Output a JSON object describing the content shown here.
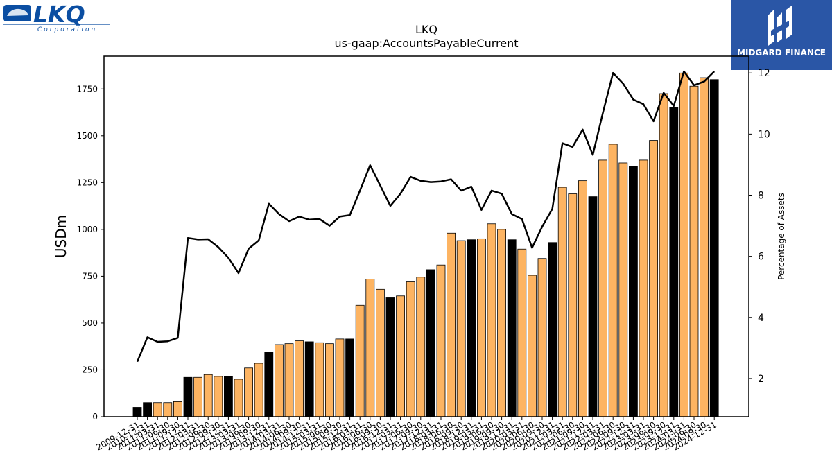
{
  "logos": {
    "left": {
      "name": "LKQ",
      "subtitle": "Corporation"
    },
    "right": {
      "name": "MIDGARD FINANCE"
    }
  },
  "chart_data": {
    "type": "bar",
    "title": "LKQ",
    "subtitle": "us-gaap:AccountsPayableCurrent",
    "ylabel": "USDm",
    "y2label": "Percentage of Assets",
    "ylim": [
      0,
      1925
    ],
    "y2lim": [
      0.75,
      12.55
    ],
    "yticks": [
      0,
      250,
      500,
      750,
      1000,
      1250,
      1500,
      1750
    ],
    "y2ticks": [
      2,
      4,
      6,
      8,
      10,
      12
    ],
    "colors": {
      "q": "#fdb462",
      "fy": "#000000",
      "line": "#000000"
    },
    "categories": [
      "2009-12-31",
      "2010-12-31",
      "2011-03-31",
      "2011-06-30",
      "2011-09-30",
      "2011-12-31",
      "2012-03-31",
      "2012-06-30",
      "2012-09-30",
      "2012-12-31",
      "2013-03-31",
      "2013-06-30",
      "2013-09-30",
      "2013-12-31",
      "2014-03-31",
      "2014-06-30",
      "2014-09-30",
      "2014-12-31",
      "2015-03-31",
      "2015-06-30",
      "2015-09-30",
      "2015-12-31",
      "2016-03-31",
      "2016-06-30",
      "2016-09-30",
      "2016-12-31",
      "2017-03-31",
      "2017-06-30",
      "2017-09-30",
      "2017-12-31",
      "2018-03-31",
      "2018-06-30",
      "2018-09-30",
      "2018-12-31",
      "2019-03-31",
      "2019-06-30",
      "2019-09-30",
      "2019-12-31",
      "2020-03-31",
      "2020-06-30",
      "2020-09-30",
      "2020-12-31",
      "2021-03-31",
      "2021-06-30",
      "2021-09-30",
      "2021-12-31",
      "2022-03-31",
      "2022-06-30",
      "2022-09-30",
      "2022-12-31",
      "2023-03-31",
      "2023-06-30",
      "2023-09-30",
      "2023-12-31",
      "2024-03-31",
      "2024-06-30",
      "2024-09-30",
      "2024-12-31"
    ],
    "series": [
      {
        "values": [
          50,
          75,
          75,
          75,
          80,
          210,
          210,
          225,
          215,
          215,
          200,
          260,
          285,
          345,
          385,
          390,
          405,
          400,
          395,
          390,
          415,
          415,
          595,
          735,
          680,
          635,
          645,
          720,
          745,
          785,
          810,
          980,
          940,
          945,
          950,
          1030,
          1000,
          945,
          895,
          755,
          845,
          930,
          1225,
          1190,
          1260,
          1175,
          1370,
          1455,
          1355,
          1335,
          1370,
          1475,
          1725,
          1650,
          1835,
          1765,
          1810,
          1800
        ],
        "fiscal_year_end": [
          true,
          true,
          false,
          false,
          false,
          true,
          false,
          false,
          false,
          true,
          false,
          false,
          false,
          true,
          false,
          false,
          false,
          true,
          false,
          false,
          false,
          true,
          false,
          false,
          false,
          true,
          false,
          false,
          false,
          true,
          false,
          false,
          false,
          true,
          false,
          false,
          false,
          true,
          false,
          false,
          false,
          true,
          false,
          false,
          false,
          true,
          false,
          false,
          false,
          true,
          false,
          false,
          false,
          true,
          false,
          false,
          false,
          true
        ]
      },
      {
        "axis": "right",
        "type": "line",
        "values": [
          2.55,
          3.35,
          3.2,
          3.22,
          3.33,
          6.6,
          6.55,
          6.56,
          6.3,
          5.95,
          5.45,
          6.25,
          6.52,
          7.72,
          7.38,
          7.15,
          7.3,
          7.2,
          7.22,
          7.0,
          7.3,
          7.35,
          8.15,
          8.98,
          8.32,
          7.65,
          8.05,
          8.6,
          8.47,
          8.43,
          8.45,
          8.52,
          8.15,
          8.28,
          7.52,
          8.15,
          8.05,
          7.38,
          7.22,
          6.28,
          6.97,
          7.55,
          9.7,
          9.58,
          10.15,
          9.32,
          10.7,
          12.0,
          11.65,
          11.13,
          10.98,
          10.42,
          11.35,
          10.92,
          12.05,
          11.6,
          11.72,
          12.05
        ]
      }
    ]
  }
}
